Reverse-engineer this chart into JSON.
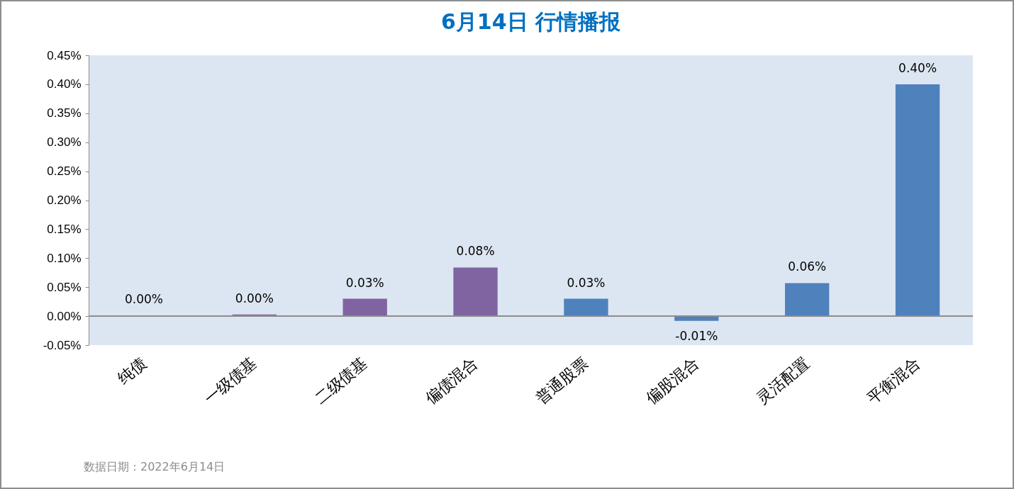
{
  "chart_data": {
    "type": "bar",
    "title": "6月14日  行情播报",
    "categories": [
      "纯债",
      "一级债基",
      "二级债基",
      "偏债混合",
      "普通股票",
      "偏股混合",
      "灵活配置",
      "平衡混合"
    ],
    "values": [
      0.001,
      0.003,
      0.03,
      0.084,
      0.03,
      -0.008,
      0.057,
      0.4
    ],
    "value_labels": [
      "0.00%",
      "0.00%",
      "0.03%",
      "0.08%",
      "0.03%",
      "-0.01%",
      "0.06%",
      "0.40%"
    ],
    "colors": [
      "#8064a2",
      "#8064a2",
      "#8064a2",
      "#8064a2",
      "#4f81bd",
      "#4f81bd",
      "#4f81bd",
      "#4f81bd"
    ],
    "ylim": [
      -0.05,
      0.45
    ],
    "yticks": [
      {
        "value": -0.05,
        "label": "-0.05%"
      },
      {
        "value": 0,
        "label": "0.00%"
      },
      {
        "value": 0.05,
        "label": "0.05%"
      },
      {
        "value": 0.1,
        "label": "0.10%"
      },
      {
        "value": 0.15,
        "label": "0.15%"
      },
      {
        "value": 0.2,
        "label": "0.20%"
      },
      {
        "value": 0.25,
        "label": "0.25%"
      },
      {
        "value": 0.3,
        "label": "0.30%"
      },
      {
        "value": 0.35,
        "label": "0.35%"
      },
      {
        "value": 0.4,
        "label": "0.40%"
      },
      {
        "value": 0.45,
        "label": "0.45%"
      }
    ],
    "annotations": [
      "数据日期：2022年6月14日"
    ]
  }
}
